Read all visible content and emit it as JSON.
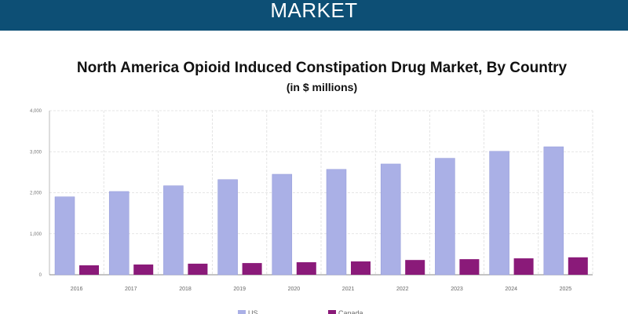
{
  "banner": {
    "text": "MARKET"
  },
  "chart_data": {
    "type": "bar",
    "title": "North America Opioid Induced Constipation Drug Market, By Country",
    "subtitle": "(in $ millions)",
    "xlabel": "",
    "ylabel": "",
    "categories": [
      "2016",
      "2017",
      "2018",
      "2019",
      "2020",
      "2021",
      "2022",
      "2023",
      "2024",
      "2025"
    ],
    "series": [
      {
        "name": "US",
        "color": "#aab0e6",
        "values": [
          1900,
          2030,
          2170,
          2320,
          2450,
          2570,
          2700,
          2840,
          3010,
          3120
        ]
      },
      {
        "name": "Canada",
        "color": "#8a1a79",
        "values": [
          230,
          250,
          270,
          285,
          305,
          325,
          360,
          380,
          400,
          425
        ]
      }
    ],
    "ylim": [
      0,
      4000
    ],
    "yticks": [
      0,
      1000,
      2000,
      3000,
      4000
    ],
    "ytick_labels": [
      "0",
      "1,000",
      "2,000",
      "3,000",
      "4,000"
    ],
    "grid": true,
    "legend_position": "bottom"
  }
}
